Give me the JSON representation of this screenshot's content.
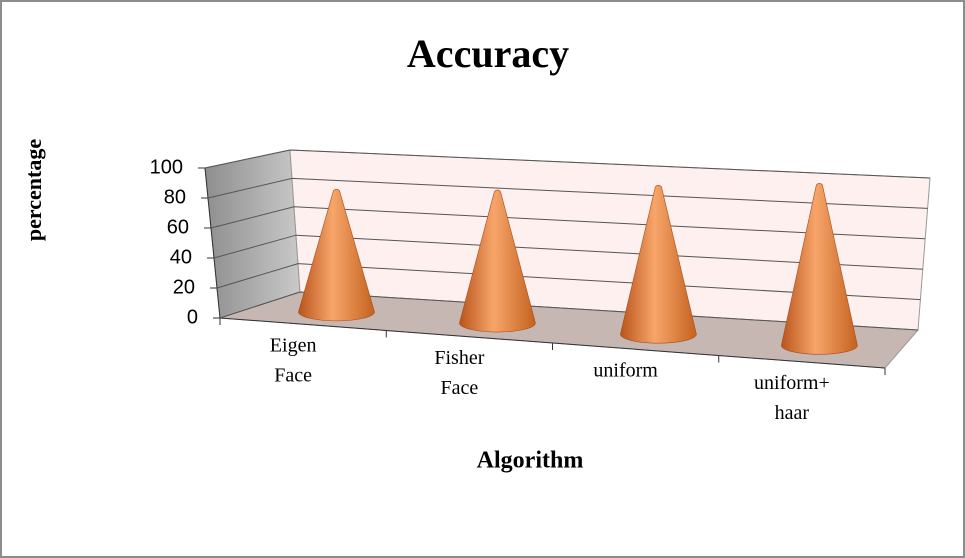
{
  "chart_data": {
    "type": "cone3d",
    "title": "Accuracy",
    "y_label": "percentage",
    "x_label": "Algorithm",
    "categories": [
      "Eigen Face",
      "Fisher Face",
      "uniform",
      "uniform+ haar"
    ],
    "values": [
      80,
      81,
      85,
      87
    ],
    "color": "#e8874a",
    "ylim": [
      0,
      100
    ],
    "yticks": [
      0,
      20,
      40,
      60,
      80,
      100
    ],
    "grid": true
  }
}
